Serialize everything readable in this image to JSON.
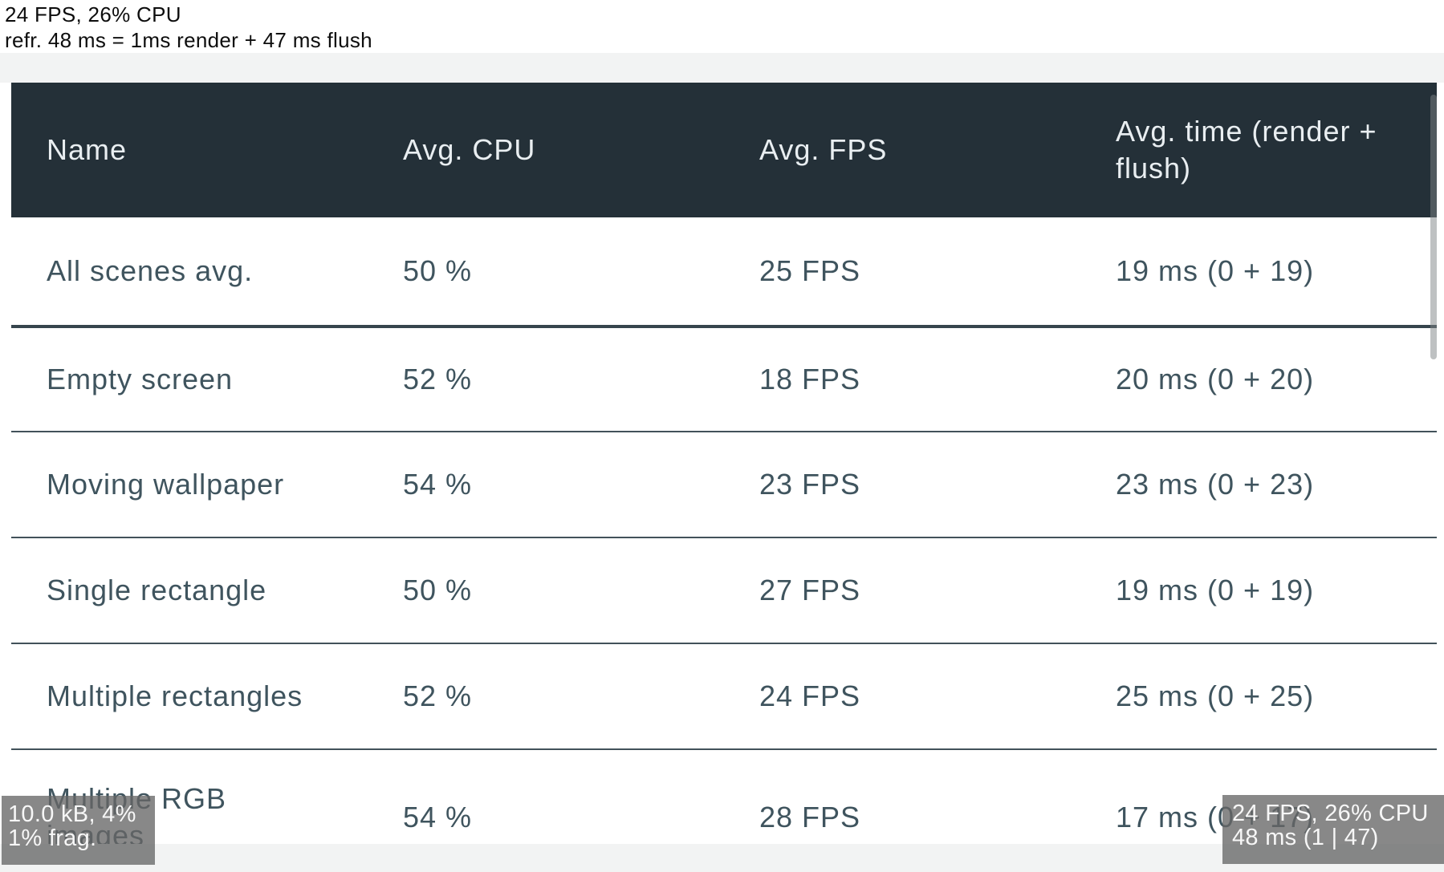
{
  "top_overlay": {
    "fps_cpu_line": "24 FPS, 26% CPU",
    "refresh_line": "refr. 48 ms = 1ms render + 47 ms flush"
  },
  "table": {
    "header": {
      "name": "Name",
      "cpu": "Avg. CPU",
      "fps": "Avg. FPS",
      "time": "Avg. time (render + flush)"
    },
    "rows": [
      {
        "name": "All scenes avg.",
        "cpu": "50 %",
        "fps": "25 FPS",
        "time": "19 ms (0 + 19)"
      },
      {
        "name": "Empty screen",
        "cpu": "52 %",
        "fps": "18 FPS",
        "time": "20 ms (0 + 20)"
      },
      {
        "name": "Moving wallpaper",
        "cpu": "54 %",
        "fps": "23 FPS",
        "time": "23 ms (0 + 23)"
      },
      {
        "name": "Single rectangle",
        "cpu": "50 %",
        "fps": "27 FPS",
        "time": "19 ms (0 + 19)"
      },
      {
        "name": "Multiple rectangles",
        "cpu": "52 %",
        "fps": "24 FPS",
        "time": "25 ms (0 + 25)"
      },
      {
        "name": "Multiple RGB images",
        "cpu": "54 %",
        "fps": "28 FPS",
        "time": "17 ms (0 + 17)"
      }
    ]
  },
  "memory_monitor": {
    "usage_line": "10.0 kB, 4%",
    "frag_line": "1% frag."
  },
  "perf_monitor": {
    "fps_cpu_line": "24 FPS, 26% CPU",
    "refresh_line": "48 ms (1 | 47)"
  },
  "colors": {
    "header_bg": "#243038",
    "header_text": "#e9eef1",
    "body_text": "#3f545e",
    "separator": "#42525a",
    "band_bg": "#f2f3f3",
    "overlay_bg": "#666666"
  }
}
